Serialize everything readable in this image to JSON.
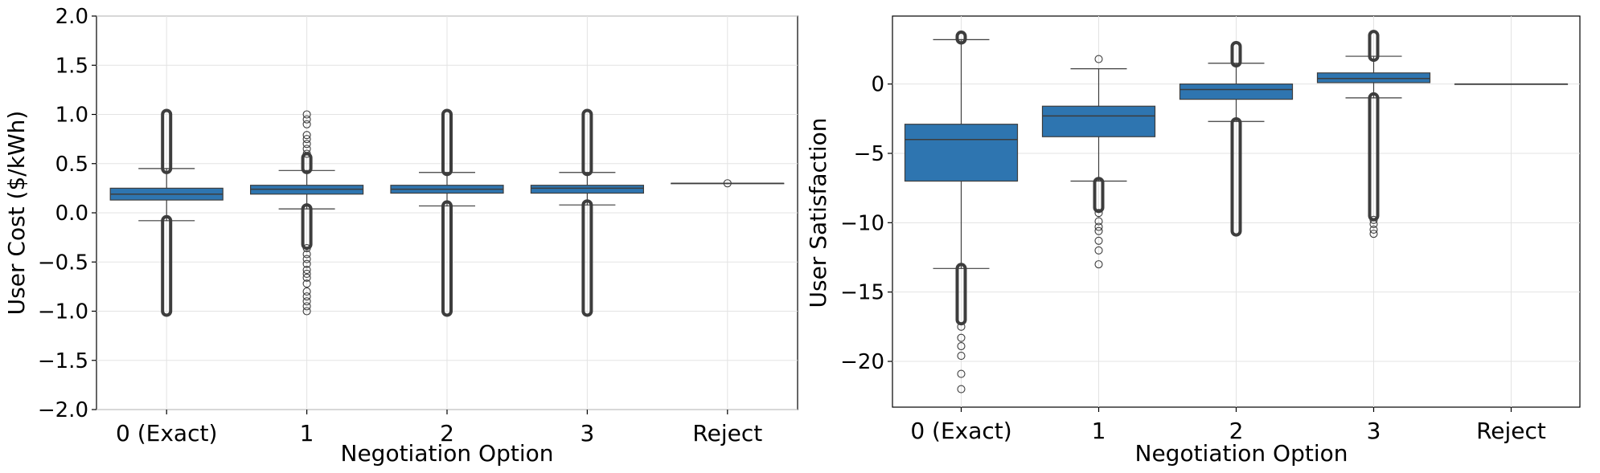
{
  "chart_data": [
    {
      "type": "box",
      "xlabel": "Negotiation Option",
      "ylabel": "User Cost ($/kWh)",
      "categories": [
        "0 (Exact)",
        "1",
        "2",
        "3",
        "Reject"
      ],
      "ylim": [
        -2.0,
        2.0
      ],
      "yticks": [
        -2.0,
        -1.5,
        -1.0,
        -0.5,
        0.0,
        0.5,
        1.0,
        1.5,
        2.0
      ],
      "ytick_labels": [
        "−2.0",
        "−1.5",
        "−1.0",
        "−0.5",
        "0.0",
        "0.5",
        "1.0",
        "1.5",
        "2.0"
      ],
      "grid": true,
      "box_color": "#2e75b0",
      "boxes": [
        {
          "category": "0 (Exact)",
          "q1": 0.13,
          "median": 0.19,
          "q3": 0.25,
          "whisker_low": -0.08,
          "whisker_high": 0.45,
          "outlier_bands": [
            [
              -1.0,
              -0.08
            ],
            [
              0.45,
              1.0
            ]
          ],
          "outliers": []
        },
        {
          "category": "1",
          "q1": 0.19,
          "median": 0.24,
          "q3": 0.28,
          "whisker_low": 0.04,
          "whisker_high": 0.43,
          "outlier_bands": [
            [
              -0.32,
              0.04
            ],
            [
              0.45,
              0.56
            ]
          ],
          "outliers": [
            -0.36,
            -0.42,
            -0.47,
            -0.52,
            -0.58,
            -0.62,
            -0.66,
            -0.72,
            -0.8,
            -0.85,
            -0.9,
            -0.95,
            -1.0,
            0.6,
            0.65,
            0.7,
            0.75,
            0.79,
            0.9,
            0.95,
            1.0
          ]
        },
        {
          "category": "2",
          "q1": 0.2,
          "median": 0.24,
          "q3": 0.28,
          "whisker_low": 0.07,
          "whisker_high": 0.41,
          "outlier_bands": [
            [
              -1.0,
              0.07
            ],
            [
              0.43,
              1.0
            ]
          ],
          "outliers": []
        },
        {
          "category": "3",
          "q1": 0.2,
          "median": 0.25,
          "q3": 0.28,
          "whisker_low": 0.08,
          "whisker_high": 0.41,
          "outlier_bands": [
            [
              -1.0,
              0.08
            ],
            [
              0.43,
              1.0
            ]
          ],
          "outliers": []
        },
        {
          "category": "Reject",
          "q1": 0.3,
          "median": 0.3,
          "q3": 0.3,
          "whisker_low": 0.3,
          "whisker_high": 0.3,
          "outlier_bands": [],
          "outliers": [
            0.3
          ]
        }
      ]
    },
    {
      "type": "box",
      "xlabel": "Negotiation Option",
      "ylabel": "User Satisfaction",
      "categories": [
        "0 (Exact)",
        "1",
        "2",
        "3",
        "Reject"
      ],
      "ylim": [
        -23.3,
        4.9
      ],
      "yticks": [
        -20,
        -15,
        -10,
        -5,
        0
      ],
      "ytick_labels": [
        "−20",
        "−15",
        "−10",
        "−5",
        "0"
      ],
      "grid": true,
      "box_color": "#2e75b0",
      "boxes": [
        {
          "category": "0 (Exact)",
          "q1": -7.0,
          "median": -4.0,
          "q3": -2.9,
          "whisker_low": -13.3,
          "whisker_high": 3.2,
          "outlier_bands": [
            [
              -17.0,
              -13.3
            ],
            [
              3.25,
              3.45
            ]
          ],
          "outliers": [
            -17.5,
            -18.3,
            -18.9,
            -19.6,
            -20.9,
            -22.0
          ]
        },
        {
          "category": "1",
          "q1": -3.8,
          "median": -2.3,
          "q3": -1.6,
          "whisker_low": -7.0,
          "whisker_high": 1.1,
          "outlier_bands": [
            [
              -8.9,
              -7.1
            ]
          ],
          "outliers": [
            -9.3,
            -9.9,
            -10.3,
            -10.6,
            -11.3,
            -12.0,
            -13.0,
            1.8
          ]
        },
        {
          "category": "2",
          "q1": -1.1,
          "median": -0.4,
          "q3": 0.0,
          "whisker_low": -2.7,
          "whisker_high": 1.5,
          "outlier_bands": [
            [
              -10.6,
              -2.8
            ],
            [
              1.6,
              2.7
            ]
          ],
          "outliers": []
        },
        {
          "category": "3",
          "q1": 0.1,
          "median": 0.4,
          "q3": 0.8,
          "whisker_low": -1.0,
          "whisker_high": 2.0,
          "outlier_bands": [
            [
              -9.5,
              -1.0
            ],
            [
              2.0,
              3.5
            ]
          ],
          "outliers": [
            -9.8,
            -10.1,
            -10.5,
            -10.8
          ]
        },
        {
          "category": "Reject",
          "q1": 0.0,
          "median": 0.0,
          "q3": 0.0,
          "whisker_low": 0.0,
          "whisker_high": 0.0,
          "outlier_bands": [],
          "outliers": []
        }
      ]
    }
  ]
}
